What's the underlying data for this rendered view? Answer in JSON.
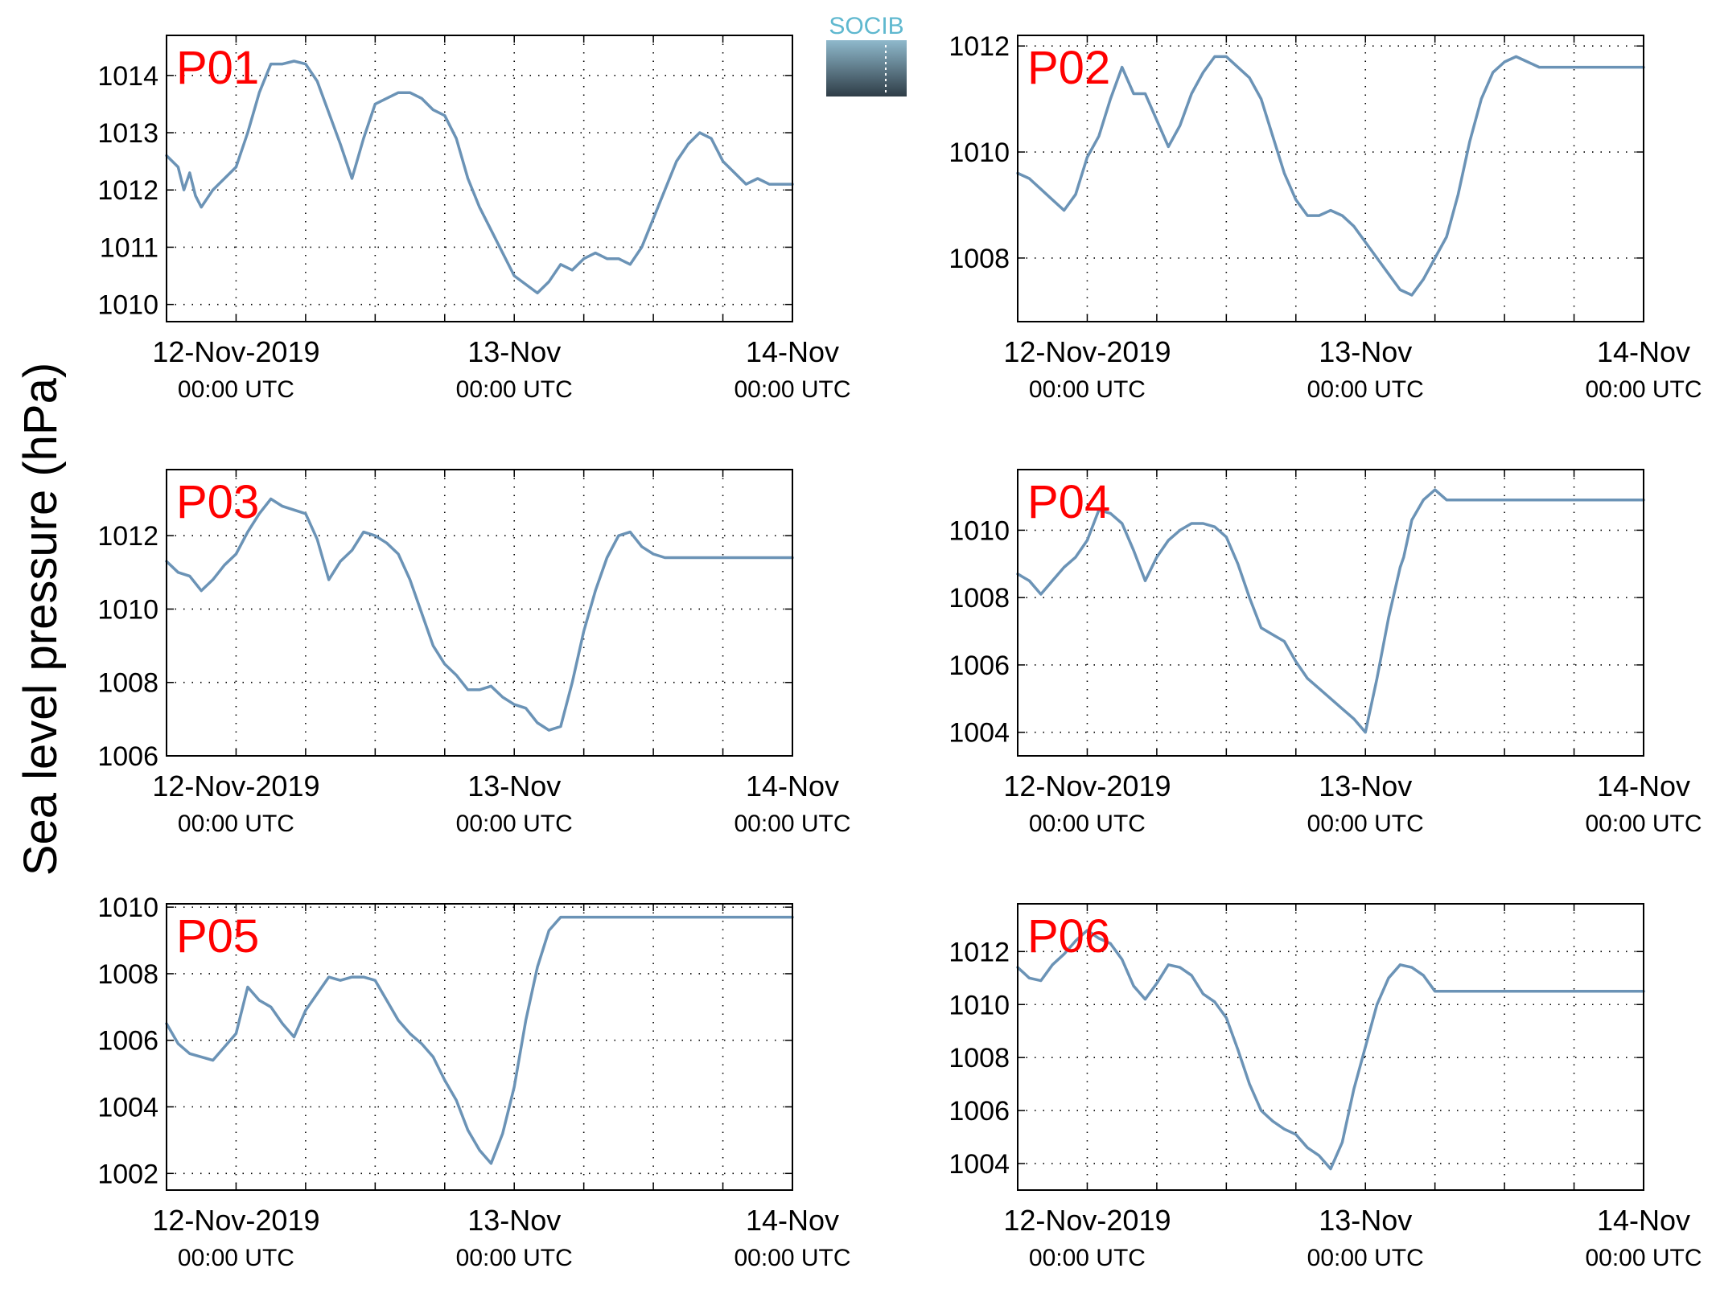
{
  "ylabel": "Sea level pressure (hPa)",
  "logo": {
    "text": "SOCIB"
  },
  "colors": {
    "line": "#6b93b6",
    "panel_label": "#ff0000",
    "grid": "#000000"
  },
  "x_ticks": [
    {
      "hour": 0,
      "line1": "12-Nov-2019",
      "line2": "00:00 UTC"
    },
    {
      "hour": 24,
      "line1": "13-Nov",
      "line2": "00:00 UTC"
    },
    {
      "hour": 48,
      "line1": "14-Nov",
      "line2": "00:00 UTC"
    }
  ],
  "chart_data": [
    {
      "type": "line",
      "title": "P01",
      "xlim_hours": [
        -6,
        48
      ],
      "ylim": [
        1009.7,
        1014.7
      ],
      "yticks": [
        1010,
        1011,
        1012,
        1013,
        1014
      ],
      "grid": true,
      "series": [
        {
          "x_hours": [
            -6,
            -5,
            -4.5,
            -4,
            -3.5,
            -3,
            -2,
            -1,
            0,
            1,
            2,
            3,
            4,
            5,
            6,
            7,
            9,
            10,
            11,
            12,
            14,
            15,
            16,
            17,
            18,
            19,
            20,
            21,
            22,
            23,
            24,
            26,
            27,
            28,
            29,
            30,
            31,
            32,
            33,
            34,
            35,
            36,
            37,
            38,
            39,
            40,
            41,
            42,
            43,
            44,
            45,
            46,
            47,
            48
          ],
          "values": [
            1012.6,
            1012.4,
            1012.0,
            1012.3,
            1011.9,
            1011.7,
            1012.0,
            1012.2,
            1012.4,
            1013.0,
            1013.7,
            1014.2,
            1014.2,
            1014.25,
            1014.2,
            1013.9,
            1012.8,
            1012.2,
            1012.9,
            1013.5,
            1013.7,
            1013.7,
            1013.6,
            1013.4,
            1013.3,
            1012.9,
            1012.2,
            1011.7,
            1011.3,
            1010.9,
            1010.5,
            1010.2,
            1010.4,
            1010.7,
            1010.6,
            1010.8,
            1010.9,
            1010.8,
            1010.8,
            1010.7,
            1011.0,
            1011.5,
            1012.0,
            1012.5,
            1012.8,
            1013.0,
            1012.9,
            1012.5,
            1012.3,
            1012.1,
            1012.2,
            1012.1,
            1012.1,
            1012.1
          ]
        }
      ]
    },
    {
      "type": "line",
      "title": "P02",
      "xlim_hours": [
        -6,
        48
      ],
      "ylim": [
        1006.8,
        1012.2
      ],
      "yticks": [
        1008,
        1010,
        1012
      ],
      "grid": true,
      "series": [
        {
          "x_hours": [
            -6,
            -5,
            -4,
            -3,
            -2,
            -1,
            0,
            1,
            2,
            3,
            4,
            5,
            6,
            7,
            8,
            9,
            10,
            11,
            12,
            13,
            14,
            15,
            16,
            17,
            18,
            19,
            20,
            21,
            22,
            23,
            24,
            25,
            26,
            27,
            28,
            29,
            30,
            31,
            32,
            33,
            34,
            35,
            36,
            37,
            38,
            39,
            40,
            41,
            42,
            43,
            44,
            45,
            46,
            47,
            48
          ],
          "values": [
            1009.6,
            1009.5,
            1009.3,
            1009.1,
            1008.9,
            1009.2,
            1009.9,
            1010.3,
            1011.0,
            1011.6,
            1011.1,
            1011.1,
            1010.6,
            1010.1,
            1010.5,
            1011.1,
            1011.5,
            1011.8,
            1011.8,
            1011.6,
            1011.4,
            1011.0,
            1010.3,
            1009.6,
            1009.1,
            1008.8,
            1008.8,
            1008.9,
            1008.8,
            1008.6,
            1008.3,
            1008.0,
            1007.7,
            1007.4,
            1007.3,
            1007.6,
            1008.0,
            1008.4,
            1009.2,
            1010.2,
            1011.0,
            1011.5,
            1011.7,
            1011.8,
            1011.7,
            1011.6,
            1011.6,
            1011.6,
            1011.6,
            1011.6,
            1011.6,
            1011.6,
            1011.6,
            1011.6,
            1011.6
          ]
        }
      ]
    },
    {
      "type": "line",
      "title": "P03",
      "xlim_hours": [
        -6,
        48
      ],
      "ylim": [
        1006,
        1013.8
      ],
      "yticks": [
        1006,
        1008,
        1010,
        1012
      ],
      "grid": true,
      "series": [
        {
          "x_hours": [
            -6,
            -5,
            -4,
            -3,
            -2,
            -1,
            0,
            1,
            2,
            3,
            4,
            5,
            6,
            7,
            8,
            9,
            10,
            11,
            12,
            13,
            14,
            15,
            16,
            17,
            18,
            19,
            20,
            21,
            22,
            23,
            24,
            25,
            26,
            27,
            28,
            29,
            30,
            31,
            32,
            33,
            34,
            35,
            36,
            37,
            38,
            39,
            40,
            41,
            42,
            43,
            44,
            45,
            46,
            47,
            48
          ],
          "values": [
            1011.3,
            1011.0,
            1010.9,
            1010.5,
            1010.8,
            1011.2,
            1011.5,
            1012.1,
            1012.6,
            1013.0,
            1012.8,
            1012.7,
            1012.6,
            1011.9,
            1010.8,
            1011.3,
            1011.6,
            1012.1,
            1012.0,
            1011.8,
            1011.5,
            1010.8,
            1009.9,
            1009.0,
            1008.5,
            1008.2,
            1007.8,
            1007.8,
            1007.9,
            1007.6,
            1007.4,
            1007.3,
            1006.9,
            1006.7,
            1006.8,
            1008.0,
            1009.4,
            1010.5,
            1011.4,
            1012.0,
            1012.1,
            1011.7,
            1011.5,
            1011.4,
            1011.4,
            1011.4,
            1011.4,
            1011.4,
            1011.4,
            1011.4,
            1011.4,
            1011.4,
            1011.4,
            1011.4,
            1011.4
          ]
        }
      ]
    },
    {
      "type": "line",
      "title": "P04",
      "xlim_hours": [
        -6,
        48
      ],
      "ylim": [
        1003.3,
        1011.8
      ],
      "yticks": [
        1004,
        1006,
        1008,
        1010
      ],
      "grid": true,
      "series": [
        {
          "x_hours": [
            -6,
            -5,
            -4,
            -3,
            -2,
            -1,
            0,
            1,
            2,
            3,
            4,
            5,
            6,
            7,
            8,
            9,
            10,
            11,
            12,
            13,
            14,
            15,
            16,
            17,
            18,
            19,
            20,
            21,
            22,
            23,
            24,
            25,
            26,
            27,
            27.3,
            28,
            29,
            30,
            31,
            32,
            33,
            34,
            35,
            36,
            37,
            38,
            39,
            40,
            41,
            42,
            43,
            44,
            45,
            46,
            47,
            48
          ],
          "values": [
            1008.7,
            1008.5,
            1008.1,
            1008.5,
            1008.9,
            1009.2,
            1009.7,
            1010.6,
            1010.5,
            1010.2,
            1009.4,
            1008.5,
            1009.2,
            1009.7,
            1010.0,
            1010.2,
            1010.2,
            1010.1,
            1009.8,
            1009.0,
            1008.0,
            1007.1,
            1006.9,
            1006.7,
            1006.1,
            1005.6,
            1005.3,
            1005.0,
            1004.7,
            1004.4,
            1004.0,
            1005.6,
            1007.4,
            1008.9,
            1009.2,
            1010.3,
            1010.9,
            1011.2,
            1010.9,
            1010.9,
            1010.9,
            1010.9,
            1010.9,
            1010.9,
            1010.9,
            1010.9,
            1010.9,
            1010.9,
            1010.9,
            1010.9,
            1010.9,
            1010.9,
            1010.9,
            1010.9,
            1010.9,
            1010.9
          ]
        }
      ]
    },
    {
      "type": "line",
      "title": "P05",
      "xlim_hours": [
        -6,
        48
      ],
      "ylim": [
        1001.5,
        1010.1
      ],
      "yticks": [
        1002,
        1004,
        1006,
        1008,
        1010
      ],
      "grid": true,
      "series": [
        {
          "x_hours": [
            -6,
            -5,
            -4,
            -3,
            -2,
            -1,
            0,
            1,
            2,
            3,
            4,
            5,
            6,
            7,
            8,
            9,
            10,
            11,
            12,
            13,
            14,
            15,
            16,
            17,
            18,
            19,
            20,
            21,
            22,
            23,
            24,
            25,
            26,
            27,
            28,
            29,
            30,
            31,
            32,
            33,
            34,
            35,
            36,
            37,
            38,
            39,
            40,
            41,
            42,
            43,
            44,
            45,
            46,
            47,
            48
          ],
          "values": [
            1006.5,
            1005.9,
            1005.6,
            1005.5,
            1005.4,
            1005.8,
            1006.2,
            1007.6,
            1007.2,
            1007.0,
            1006.5,
            1006.1,
            1006.9,
            1007.4,
            1007.9,
            1007.8,
            1007.9,
            1007.9,
            1007.8,
            1007.2,
            1006.6,
            1006.2,
            1005.9,
            1005.5,
            1004.8,
            1004.2,
            1003.3,
            1002.7,
            1002.3,
            1003.2,
            1004.6,
            1006.6,
            1008.2,
            1009.3,
            1009.7,
            1009.7,
            1009.7,
            1009.7,
            1009.7,
            1009.7,
            1009.7,
            1009.7,
            1009.7,
            1009.7,
            1009.7,
            1009.7,
            1009.7,
            1009.7,
            1009.7,
            1009.7,
            1009.7,
            1009.7,
            1009.7,
            1009.7,
            1009.7
          ]
        }
      ]
    },
    {
      "type": "line",
      "title": "P06",
      "xlim_hours": [
        -6,
        48
      ],
      "ylim": [
        1003,
        1013.8
      ],
      "yticks": [
        1004,
        1006,
        1008,
        1010,
        1012
      ],
      "grid": true,
      "series": [
        {
          "x_hours": [
            -6,
            -5,
            -4,
            -3,
            -2,
            -1,
            0,
            1,
            2,
            3,
            4,
            5,
            6,
            7,
            8,
            9,
            10,
            11,
            12,
            13,
            14,
            15,
            16,
            17,
            18,
            19,
            20,
            21,
            22,
            23,
            24,
            25,
            26,
            27,
            28,
            29,
            30,
            31,
            32,
            33,
            34,
            35,
            36,
            37,
            38,
            39,
            40,
            41,
            42,
            43,
            44,
            45,
            46,
            47,
            48
          ],
          "values": [
            1011.4,
            1011.0,
            1010.9,
            1011.5,
            1011.9,
            1012.4,
            1012.8,
            1012.5,
            1012.3,
            1011.7,
            1010.7,
            1010.2,
            1010.8,
            1011.5,
            1011.4,
            1011.1,
            1010.4,
            1010.1,
            1009.5,
            1008.3,
            1007.0,
            1006.0,
            1005.6,
            1005.3,
            1005.1,
            1004.6,
            1004.3,
            1003.8,
            1004.8,
            1006.8,
            1008.4,
            1010.0,
            1011.0,
            1011.5,
            1011.4,
            1011.1,
            1010.5,
            1010.5,
            1010.5,
            1010.5,
            1010.5,
            1010.5,
            1010.5,
            1010.5,
            1010.5,
            1010.5,
            1010.5,
            1010.5,
            1010.5,
            1010.5,
            1010.5,
            1010.5,
            1010.5,
            1010.5,
            1010.5
          ]
        }
      ]
    }
  ]
}
